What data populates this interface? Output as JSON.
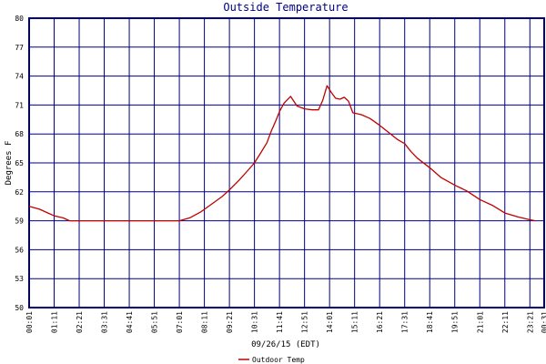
{
  "chart_data": {
    "type": "line",
    "title": "Outside Temperature",
    "ylabel": "Degrees F",
    "xlabel": "09/26/15 (EDT)",
    "ylim": [
      50,
      80
    ],
    "yticks": [
      50,
      53,
      56,
      59,
      62,
      65,
      68,
      71,
      74,
      77,
      80
    ],
    "xtick_labels": [
      "00:01",
      "01:11",
      "02:21",
      "03:31",
      "04:41",
      "05:51",
      "07:01",
      "08:11",
      "09:21",
      "10:31",
      "11:41",
      "12:51",
      "14:01",
      "15:11",
      "16:21",
      "17:31",
      "18:41",
      "19:51",
      "21:01",
      "22:11",
      "23:21",
      "00:31"
    ],
    "xtick_hours": [
      0.0167,
      1.1833,
      2.35,
      3.5167,
      4.6833,
      5.85,
      7.0167,
      8.1833,
      9.35,
      10.5167,
      11.6833,
      12.85,
      14.0167,
      15.1833,
      16.35,
      17.5167,
      18.6833,
      19.85,
      21.0167,
      22.1833,
      23.35,
      24.0167
    ],
    "grid": true,
    "legend": "bottom",
    "series": [
      {
        "name": "Outdoor Temp",
        "color": "#c00000",
        "x_hours": [
          0.0167,
          0.5,
          0.9,
          1.2,
          1.6,
          1.9,
          2.35,
          3.0,
          4.0,
          5.0,
          6.0,
          7.0167,
          7.5,
          8.0,
          8.5,
          9.0,
          9.35,
          9.8,
          10.2,
          10.5167,
          10.8,
          11.1,
          11.3,
          11.5,
          11.7,
          11.9,
          12.2,
          12.5,
          12.85,
          13.2,
          13.5,
          13.7,
          13.9,
          14.1,
          14.3,
          14.5,
          14.7,
          14.9,
          15.1,
          15.5,
          15.9,
          16.35,
          16.8,
          17.2,
          17.5167,
          17.8,
          18.1,
          18.6833,
          19.2,
          19.85,
          20.4,
          21.0167,
          21.6,
          22.1833,
          22.8,
          23.35,
          23.6
        ],
        "y_values": [
          60.5,
          60.2,
          59.8,
          59.5,
          59.3,
          59.0,
          59.0,
          59.0,
          59.0,
          59.0,
          59.0,
          59.0,
          59.3,
          59.9,
          60.7,
          61.5,
          62.2,
          63.2,
          64.2,
          65.0,
          66.0,
          67.1,
          68.3,
          69.3,
          70.4,
          71.2,
          71.9,
          70.9,
          70.6,
          70.5,
          70.5,
          71.5,
          73.0,
          72.3,
          71.7,
          71.6,
          71.8,
          71.4,
          70.2,
          70.0,
          69.6,
          68.9,
          68.1,
          67.4,
          67.0,
          66.2,
          65.5,
          64.5,
          63.5,
          62.7,
          62.1,
          61.2,
          60.6,
          59.8,
          59.4,
          59.1,
          59.0
        ]
      }
    ]
  }
}
